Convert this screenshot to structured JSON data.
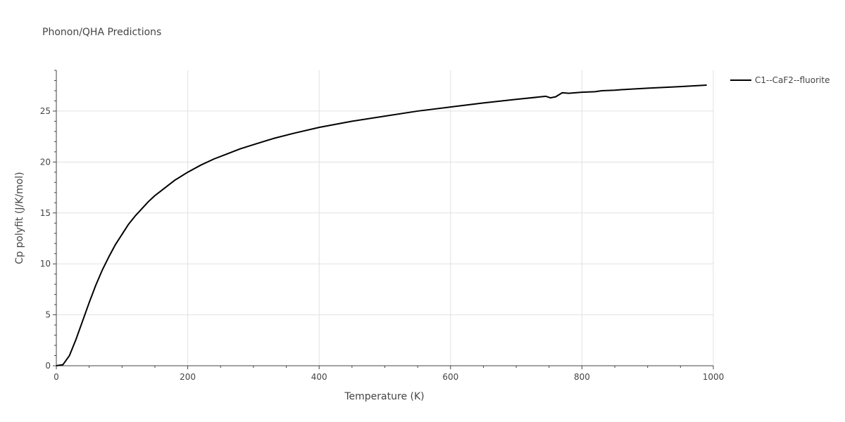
{
  "title": "Phonon/QHA Predictions",
  "chart_data": {
    "type": "line",
    "xlabel": "Temperature (K)",
    "ylabel": "Cp polyfit (J/K/mol)",
    "xlim": [
      0,
      1000
    ],
    "ylim": [
      0,
      29
    ],
    "xticks": [
      0,
      200,
      400,
      600,
      800,
      1000
    ],
    "yticks": [
      0,
      5,
      10,
      15,
      20,
      25
    ],
    "grid": true,
    "legend_position": "top-right",
    "series": [
      {
        "name": "C1--CaF2--fluorite",
        "color": "#000000",
        "x": [
          0,
          10,
          20,
          30,
          40,
          50,
          60,
          70,
          80,
          90,
          100,
          110,
          120,
          130,
          140,
          150,
          160,
          170,
          180,
          190,
          200,
          220,
          240,
          260,
          280,
          300,
          330,
          360,
          400,
          450,
          500,
          550,
          600,
          650,
          700,
          745,
          752,
          760,
          770,
          780,
          800,
          820,
          830,
          850,
          860,
          900,
          950,
          990
        ],
        "y": [
          0.0,
          0.1,
          1.0,
          2.6,
          4.4,
          6.2,
          7.9,
          9.4,
          10.7,
          11.9,
          12.9,
          13.9,
          14.7,
          15.4,
          16.1,
          16.7,
          17.2,
          17.7,
          18.2,
          18.6,
          19.0,
          19.7,
          20.3,
          20.8,
          21.3,
          21.7,
          22.3,
          22.8,
          23.4,
          24.0,
          24.5,
          25.0,
          25.4,
          25.8,
          26.15,
          26.45,
          26.3,
          26.4,
          26.8,
          26.75,
          26.85,
          26.9,
          27.0,
          27.05,
          27.1,
          27.25,
          27.4,
          27.55
        ]
      }
    ]
  }
}
